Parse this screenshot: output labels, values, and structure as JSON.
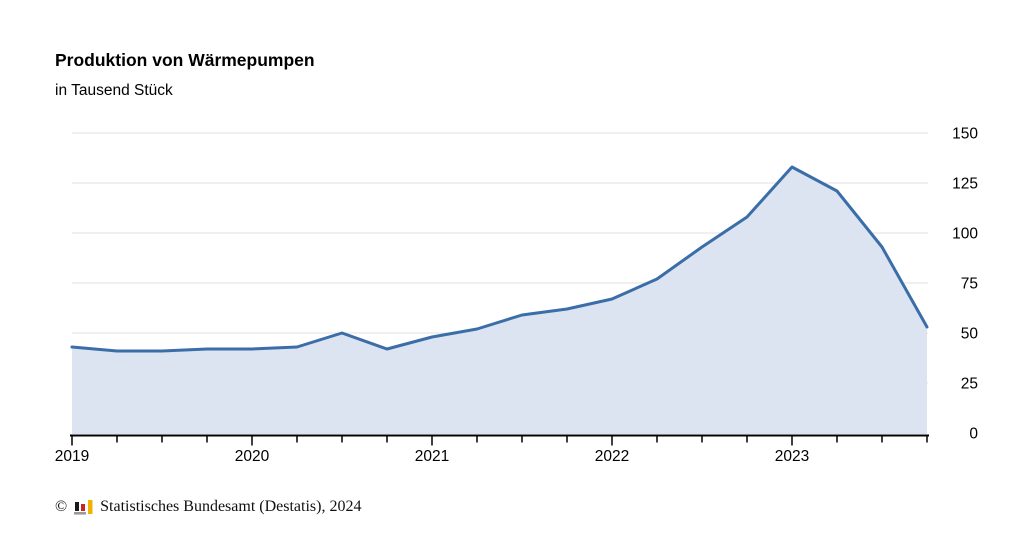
{
  "header": {
    "title": "Produktion von Wärmepumpen",
    "subtitle": "in Tausend Stück"
  },
  "chart_data": {
    "type": "area",
    "title": "Produktion von Wärmepumpen",
    "ylabel_unit": "in Tausend Stück",
    "x": [
      "2019 Q1",
      "2019 Q2",
      "2019 Q3",
      "2019 Q4",
      "2020 Q1",
      "2020 Q2",
      "2020 Q3",
      "2020 Q4",
      "2021 Q1",
      "2021 Q2",
      "2021 Q3",
      "2021 Q4",
      "2022 Q1",
      "2022 Q2",
      "2022 Q3",
      "2022 Q4",
      "2023 Q1",
      "2023 Q2",
      "2023 Q3",
      "2023 Q4"
    ],
    "values": [
      43,
      41,
      41,
      42,
      42,
      43,
      50,
      42,
      48,
      52,
      59,
      62,
      67,
      77,
      93,
      108,
      133,
      121,
      93,
      53
    ],
    "x_tick_labels": [
      "2019",
      "2020",
      "2021",
      "2022",
      "2023"
    ],
    "yticks": [
      0,
      25,
      50,
      75,
      100,
      125,
      150
    ],
    "ylim": [
      0,
      150
    ],
    "grid": true,
    "legend": "none",
    "y_axis_side": "right",
    "line_color": "#3b6ea8",
    "fill_color": "#dbe4f0",
    "grid_color": "#e2e2e2",
    "axis_color": "#000000",
    "tick_label_color": "#000000"
  },
  "footer": {
    "copyright": "©",
    "source": "Statistisches Bundesamt (Destatis), 2024",
    "logo_colors": {
      "black": "#1a1a1a",
      "red": "#cc2222",
      "gold": "#f0b200",
      "gray": "#9a9a9a"
    }
  }
}
